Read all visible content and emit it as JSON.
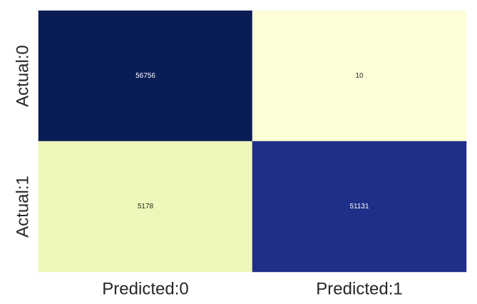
{
  "chart_data": {
    "type": "heatmap",
    "title": "",
    "xlabel": "",
    "ylabel": "",
    "x_tick_labels": [
      "Predicted:0",
      "Predicted:1"
    ],
    "y_tick_labels": [
      "Actual:0",
      "Actual:1"
    ],
    "values": [
      [
        56756,
        10
      ],
      [
        5178,
        51131
      ]
    ],
    "cell_labels": [
      [
        "56756",
        "10"
      ],
      [
        "5178",
        "51131"
      ]
    ],
    "cell_colors": [
      [
        "#0a1c56",
        "#fefed6"
      ],
      [
        "#edf7b9",
        "#1f2e87"
      ]
    ],
    "cell_text_colors": [
      [
        "#ffffff",
        "#262626"
      ],
      [
        "#262626",
        "#ffffff"
      ]
    ],
    "colormap": "YlGnBu",
    "colorbar": false,
    "grid": false
  }
}
